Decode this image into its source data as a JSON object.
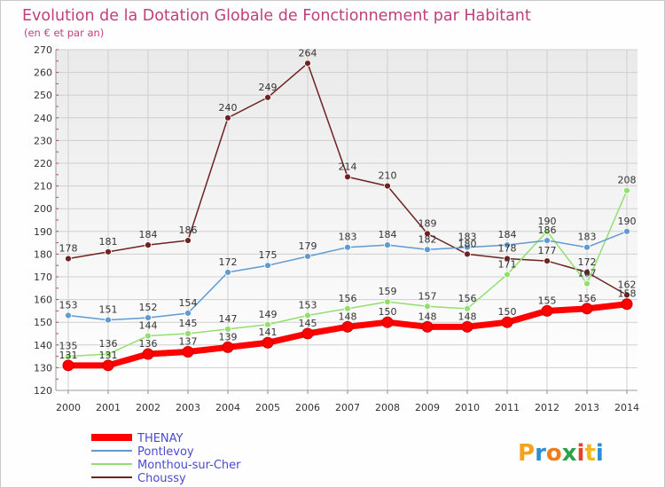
{
  "chart_data": {
    "type": "line",
    "title": "Evolution de la Dotation Globale de Fonctionnement par Habitant",
    "subtitle": "(en € et par an)",
    "x": [
      2000,
      2001,
      2002,
      2003,
      2004,
      2005,
      2006,
      2007,
      2008,
      2009,
      2010,
      2011,
      2012,
      2013,
      2014
    ],
    "ylim": [
      120,
      270
    ],
    "yticks": [
      120,
      130,
      140,
      150,
      160,
      170,
      180,
      190,
      200,
      210,
      220,
      230,
      240,
      250,
      260,
      270
    ],
    "grid": true,
    "legend_position": "bottom-left",
    "series": [
      {
        "name": "THENAY",
        "color": "#ff0000",
        "values": [
          131,
          131,
          136,
          137,
          139,
          141,
          145,
          148,
          150,
          148,
          148,
          150,
          155,
          156,
          158
        ]
      },
      {
        "name": "Pontlevoy",
        "color": "#5f9bd1",
        "values": [
          153,
          151,
          152,
          154,
          172,
          175,
          179,
          183,
          184,
          182,
          183,
          184,
          186,
          183,
          190
        ]
      },
      {
        "name": "Monthou-sur-Cher",
        "color": "#91e06e",
        "values": [
          135,
          136,
          144,
          145,
          147,
          149,
          153,
          156,
          159,
          157,
          156,
          171,
          190,
          167,
          208
        ]
      },
      {
        "name": "Choussy",
        "color": "#6e2222",
        "values": [
          178,
          181,
          184,
          186,
          240,
          249,
          264,
          214,
          210,
          189,
          180,
          178,
          177,
          172,
          162
        ]
      }
    ]
  },
  "logo": {
    "text": "Proxiti"
  }
}
